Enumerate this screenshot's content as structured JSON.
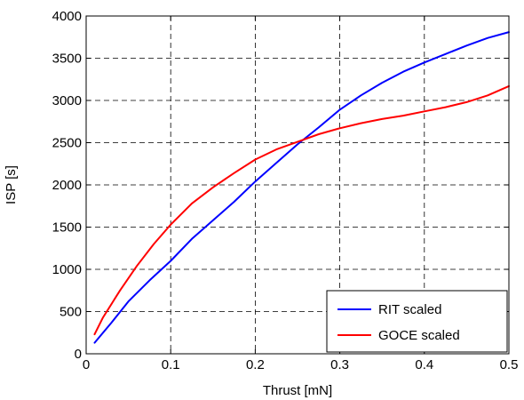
{
  "chart_data": {
    "type": "line",
    "title": "",
    "xlabel": "Thrust [mN]",
    "ylabel": "ISP [s]",
    "xlim": [
      0,
      0.5
    ],
    "ylim": [
      0,
      4000
    ],
    "x_ticks": [
      "0",
      "0.1",
      "0.2",
      "0.3",
      "0.4",
      "0.5"
    ],
    "y_ticks": [
      "0",
      "500",
      "1000",
      "1500",
      "2000",
      "2500",
      "3000",
      "3500",
      "4000"
    ],
    "grid": true,
    "legend_position": "bottom-right",
    "series": [
      {
        "name": "RIT scaled",
        "color": "#0000ff",
        "x": [
          0.01,
          0.03,
          0.05,
          0.075,
          0.1,
          0.125,
          0.15,
          0.175,
          0.2,
          0.225,
          0.25,
          0.275,
          0.3,
          0.325,
          0.35,
          0.375,
          0.4,
          0.425,
          0.45,
          0.475,
          0.5
        ],
        "y": [
          130,
          370,
          620,
          870,
          1100,
          1360,
          1580,
          1800,
          2040,
          2260,
          2480,
          2680,
          2890,
          3060,
          3210,
          3340,
          3450,
          3550,
          3650,
          3740,
          3810
        ]
      },
      {
        "name": "GOCE scaled",
        "color": "#ff0000",
        "x": [
          0.01,
          0.02,
          0.04,
          0.06,
          0.08,
          0.1,
          0.125,
          0.15,
          0.175,
          0.2,
          0.225,
          0.25,
          0.275,
          0.3,
          0.325,
          0.35,
          0.375,
          0.4,
          0.425,
          0.45,
          0.475,
          0.5
        ],
        "y": [
          230,
          430,
          750,
          1040,
          1300,
          1530,
          1780,
          1970,
          2140,
          2300,
          2420,
          2510,
          2600,
          2670,
          2730,
          2780,
          2820,
          2870,
          2920,
          2980,
          3060,
          3170
        ]
      }
    ]
  }
}
